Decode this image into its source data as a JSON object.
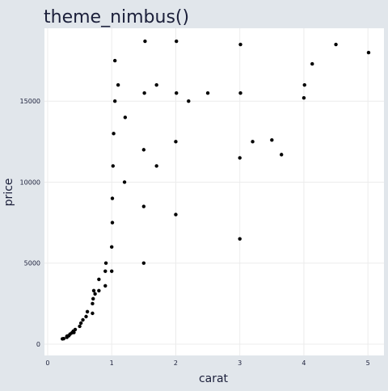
{
  "chart_data": {
    "type": "scatter",
    "title": "theme_nimbus()",
    "xlabel": "carat",
    "ylabel": "price",
    "xlim": [
      -0.05,
      5.25
    ],
    "ylim": [
      -700,
      19500
    ],
    "x_ticks": [
      0,
      1,
      2,
      3,
      4,
      5
    ],
    "y_ticks": [
      0,
      5000,
      10000,
      15000
    ],
    "grid": true,
    "legend": "none",
    "colors": {
      "background": "#e1e6eb",
      "panel": "#ffffff",
      "grid": "#ececec",
      "points": "#000000",
      "text": "#1b1f3a"
    },
    "points": [
      [
        0.23,
        326
      ],
      [
        0.25,
        340
      ],
      [
        0.3,
        420
      ],
      [
        0.3,
        480
      ],
      [
        0.31,
        500
      ],
      [
        0.33,
        520
      ],
      [
        0.35,
        620
      ],
      [
        0.38,
        700
      ],
      [
        0.4,
        800
      ],
      [
        0.41,
        720
      ],
      [
        0.43,
        900
      ],
      [
        0.5,
        1100
      ],
      [
        0.52,
        1300
      ],
      [
        0.55,
        1500
      ],
      [
        0.6,
        1700
      ],
      [
        0.62,
        2000
      ],
      [
        0.7,
        1900
      ],
      [
        0.7,
        2500
      ],
      [
        0.71,
        2800
      ],
      [
        0.72,
        3300
      ],
      [
        0.74,
        3100
      ],
      [
        0.8,
        3300
      ],
      [
        0.8,
        4000
      ],
      [
        0.9,
        3600
      ],
      [
        0.9,
        4500
      ],
      [
        0.91,
        5000
      ],
      [
        1.0,
        4500
      ],
      [
        1.0,
        6000
      ],
      [
        1.01,
        7500
      ],
      [
        1.01,
        9000
      ],
      [
        1.02,
        11000
      ],
      [
        1.03,
        13000
      ],
      [
        1.05,
        15000
      ],
      [
        1.05,
        17500
      ],
      [
        1.1,
        16000
      ],
      [
        1.2,
        10000
      ],
      [
        1.21,
        14000
      ],
      [
        1.5,
        5000
      ],
      [
        1.5,
        8500
      ],
      [
        1.5,
        12000
      ],
      [
        1.51,
        15500
      ],
      [
        1.52,
        18700
      ],
      [
        1.7,
        11000
      ],
      [
        1.7,
        16000
      ],
      [
        2.0,
        8000
      ],
      [
        2.0,
        12500
      ],
      [
        2.01,
        15500
      ],
      [
        2.01,
        18700
      ],
      [
        2.2,
        15000
      ],
      [
        2.5,
        15500
      ],
      [
        3.0,
        6500
      ],
      [
        3.0,
        11500
      ],
      [
        3.01,
        15500
      ],
      [
        3.01,
        18500
      ],
      [
        3.2,
        12500
      ],
      [
        3.5,
        12600
      ],
      [
        3.65,
        11700
      ],
      [
        4.0,
        15200
      ],
      [
        4.01,
        16000
      ],
      [
        4.13,
        17300
      ],
      [
        4.5,
        18500
      ],
      [
        5.01,
        18000
      ]
    ]
  }
}
